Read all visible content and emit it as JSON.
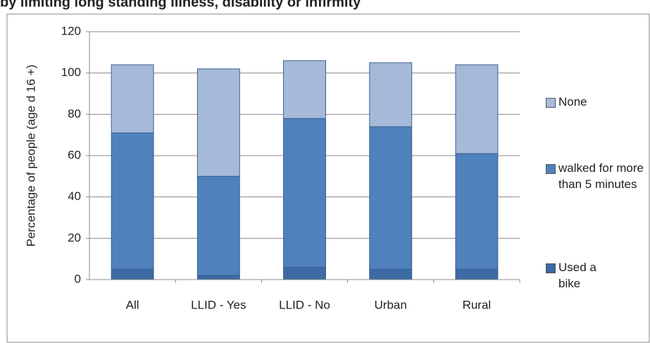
{
  "chart_data": {
    "type": "stacked-bar",
    "title": "by limiting long standing illness, disability or infirmity",
    "y_label": "Percentage of people  (age d 16 +)",
    "categories": [
      "All",
      "LLID - Yes",
      "LLID - No",
      "Urban",
      "Rural"
    ],
    "series": [
      {
        "name": "Used a bike",
        "color": "#3c6aa3",
        "values": [
          5,
          2,
          6,
          5,
          5
        ]
      },
      {
        "name": "walked for more than 5 minutes",
        "color": "#4f81bd",
        "values": [
          66,
          48,
          72,
          69,
          56
        ]
      },
      {
        "name": "None",
        "color": "#a7b9d9",
        "values": [
          33,
          52,
          28,
          31,
          43
        ]
      }
    ],
    "ylim": [
      0,
      120
    ],
    "yticks": [
      0,
      20,
      40,
      60,
      80,
      100,
      120
    ],
    "grid": true,
    "legend": "right"
  }
}
